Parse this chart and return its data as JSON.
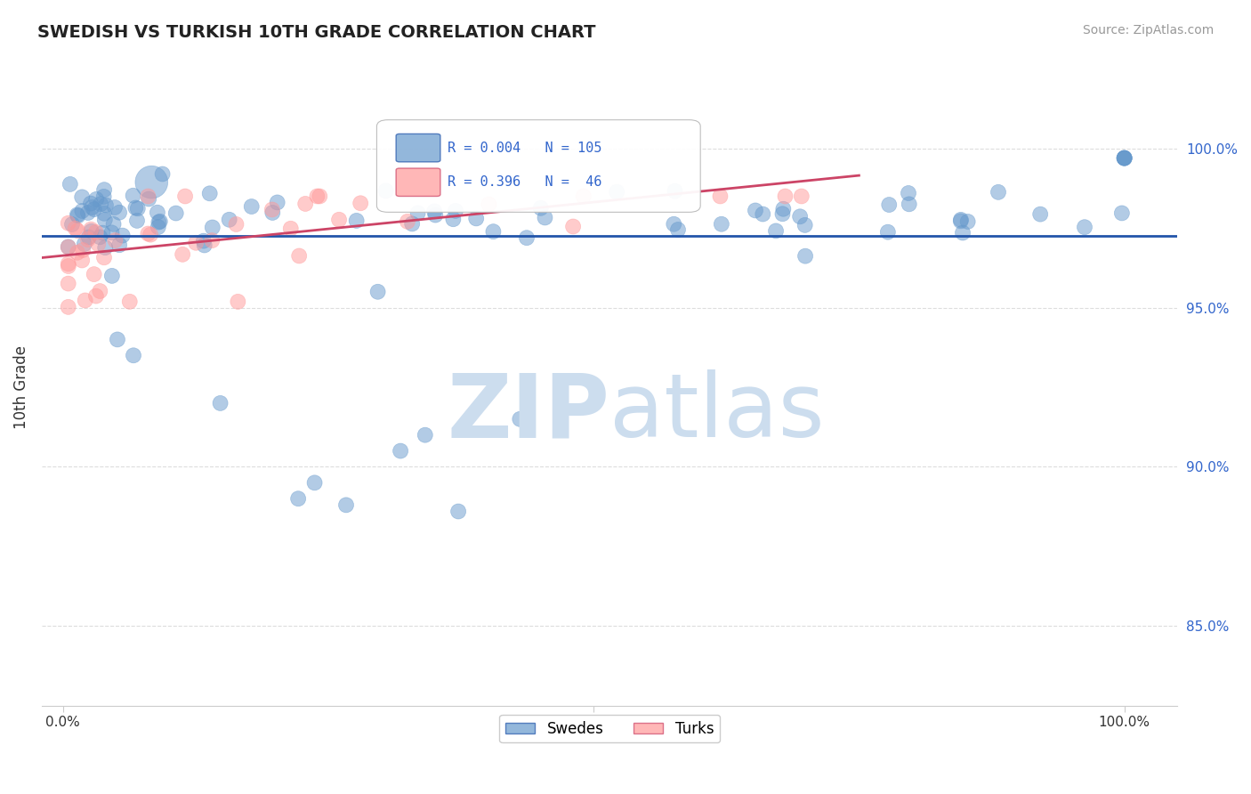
{
  "title": "SWEDISH VS TURKISH 10TH GRADE CORRELATION CHART",
  "source_text": "Source: ZipAtlas.com",
  "ylabel": "10th Grade",
  "y_ticks": [
    0.85,
    0.9,
    0.95,
    1.0
  ],
  "y_tick_labels": [
    "85.0%",
    "90.0%",
    "95.0%",
    "100.0%"
  ],
  "xlim": [
    -0.02,
    1.05
  ],
  "ylim": [
    0.825,
    1.025
  ],
  "blue_R": 0.004,
  "blue_N": 105,
  "pink_R": 0.396,
  "pink_N": 46,
  "blue_color": "#6699CC",
  "pink_color": "#FF9999",
  "blue_line_color": "#2255AA",
  "pink_line_color": "#CC4466",
  "legend_R_color": "#3366CC",
  "watermark_color": "#CCDDEE",
  "grid_color": "#AAAAAA",
  "background_color": "#FFFFFF"
}
